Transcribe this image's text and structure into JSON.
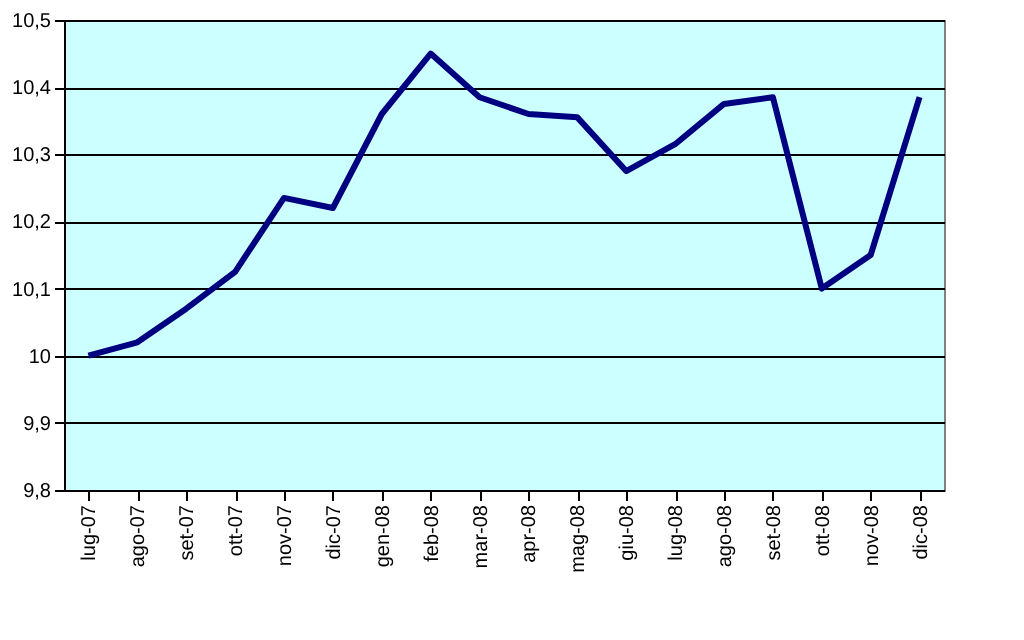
{
  "chart_data": {
    "type": "line",
    "categories": [
      "lug-07",
      "ago-07",
      "set-07",
      "ott-07",
      "nov-07",
      "dic-07",
      "gen-08",
      "feb-08",
      "mar-08",
      "apr-08",
      "mag-08",
      "giu-08",
      "lug-08",
      "ago-08",
      "set-08",
      "ott-08",
      "nov-08",
      "dic-08"
    ],
    "series": [
      {
        "color": "#000080",
        "values": [
          10.0,
          10.02,
          10.07,
          10.125,
          10.235,
          10.22,
          10.36,
          10.45,
          10.385,
          10.36,
          10.355,
          10.275,
          10.315,
          10.375,
          10.385,
          10.1,
          10.15,
          10.385
        ]
      }
    ],
    "ylim": [
      9.8,
      10.5
    ],
    "yticks": [
      {
        "value": 9.8,
        "label": "9,8"
      },
      {
        "value": 9.9,
        "label": "9,9"
      },
      {
        "value": 10,
        "label": "10"
      },
      {
        "value": 10.1,
        "label": "10,1"
      },
      {
        "value": 10.2,
        "label": "10,2"
      },
      {
        "value": 10.3,
        "label": "10,3"
      },
      {
        "value": 10.4,
        "label": "10,4"
      },
      {
        "value": 10.5,
        "label": "10,5"
      }
    ],
    "grid": "y",
    "marker": "none",
    "line_style": "solid"
  }
}
